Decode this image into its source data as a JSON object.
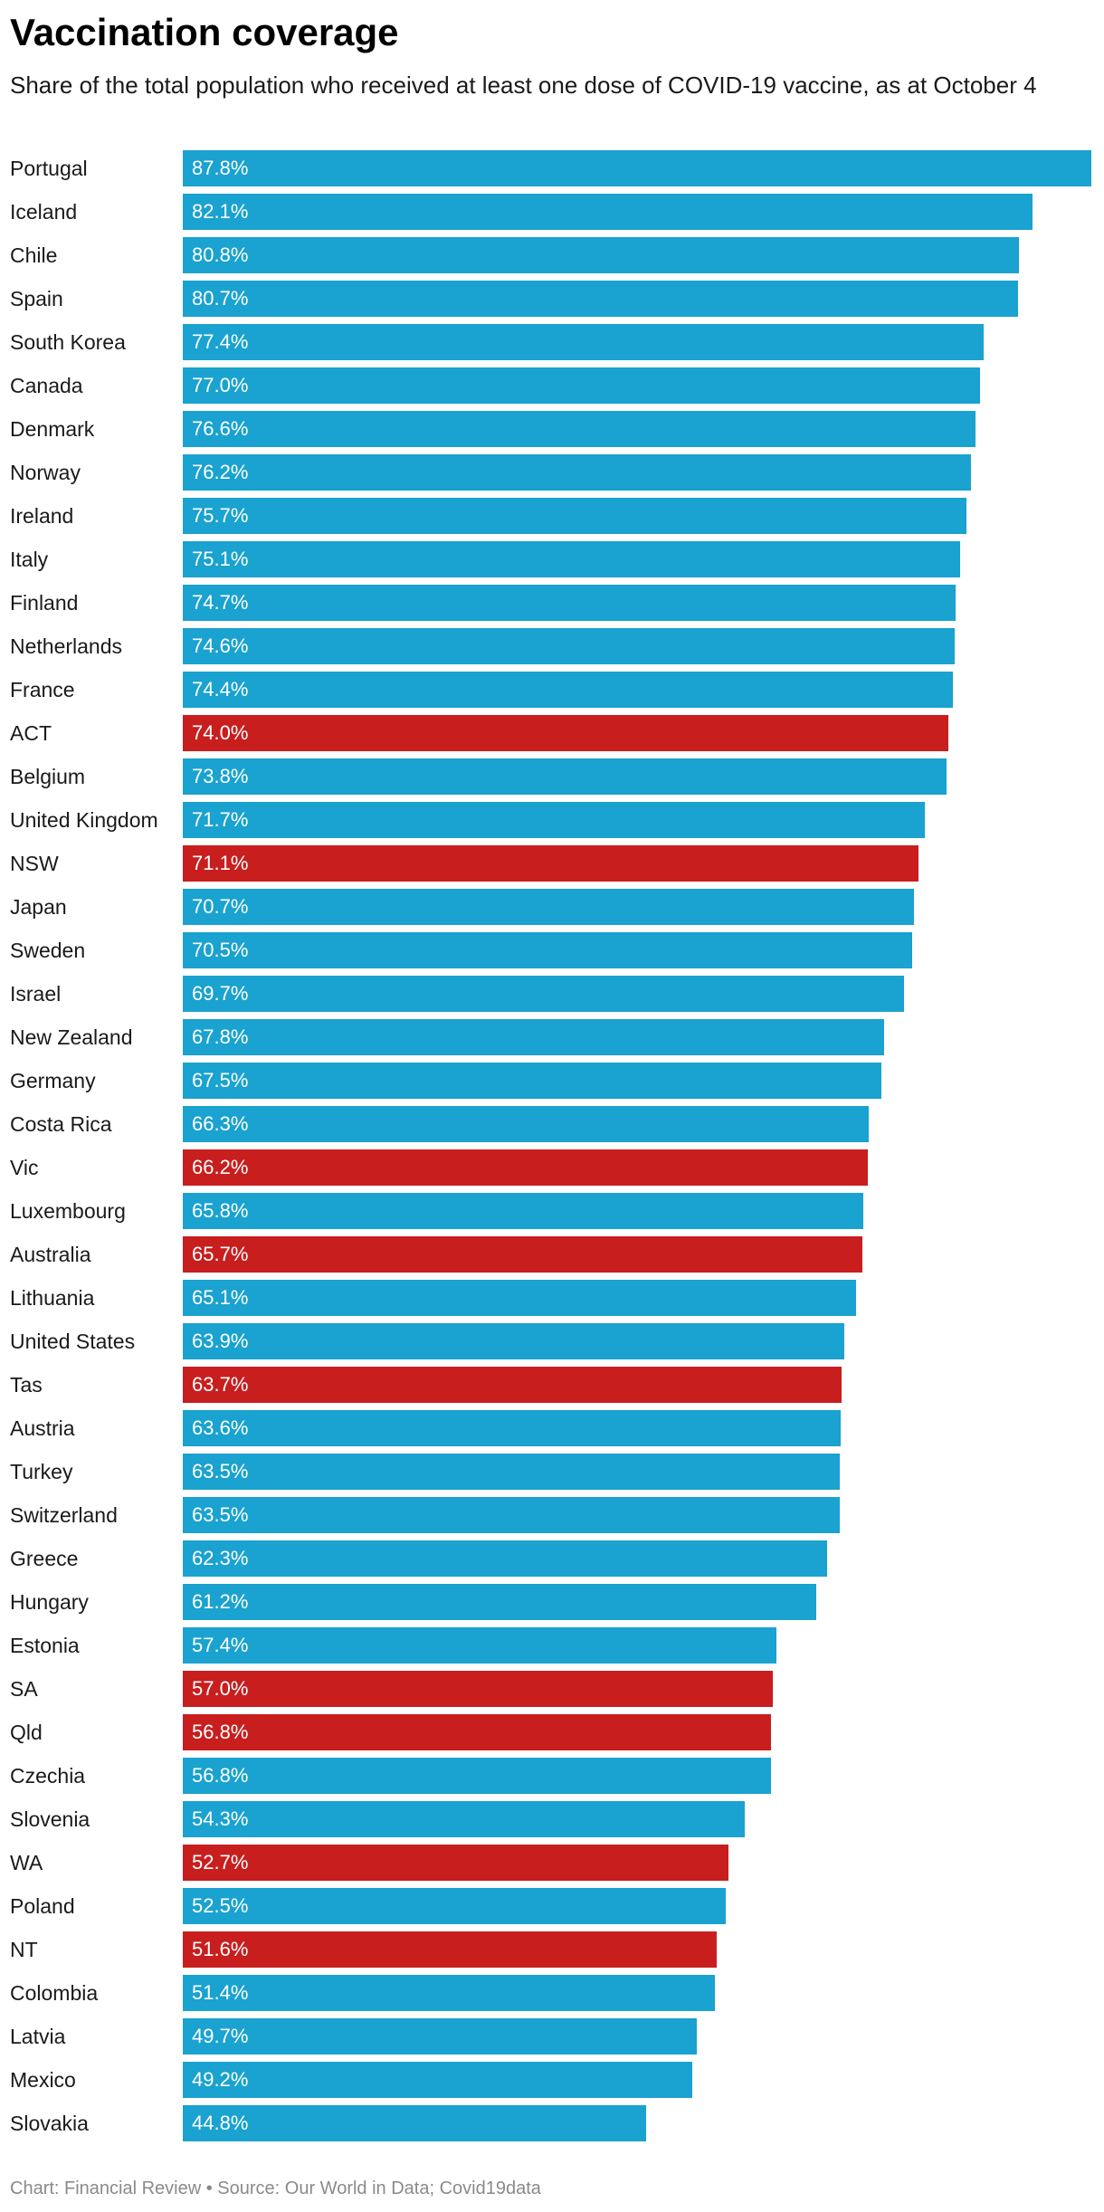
{
  "chart_data": {
    "type": "bar",
    "orientation": "horizontal",
    "title": "Vaccination coverage",
    "subtitle": "Share of the total population who received at least one dose of COVID-19 vaccine, as at October 4",
    "footer": "Chart: Financial Review • Source: Our World in Data; Covid19data",
    "colors": {
      "default": "#1aa2d0",
      "highlight": "#c81e1e"
    },
    "value_suffix": "%",
    "xlim": [
      0,
      87.8
    ],
    "categories": [
      "Portugal",
      "Iceland",
      "Chile",
      "Spain",
      "South Korea",
      "Canada",
      "Denmark",
      "Norway",
      "Ireland",
      "Italy",
      "Finland",
      "Netherlands",
      "France",
      "ACT",
      "Belgium",
      "United Kingdom",
      "NSW",
      "Japan",
      "Sweden",
      "Israel",
      "New Zealand",
      "Germany",
      "Costa Rica",
      "Vic",
      "Luxembourg",
      "Australia",
      "Lithuania",
      "United States",
      "Tas",
      "Austria",
      "Turkey",
      "Switzerland",
      "Greece",
      "Hungary",
      "Estonia",
      "SA",
      "Qld",
      "Czechia",
      "Slovenia",
      "WA",
      "Poland",
      "NT",
      "Colombia",
      "Latvia",
      "Mexico",
      "Slovakia"
    ],
    "values": [
      87.8,
      82.1,
      80.8,
      80.7,
      77.4,
      77.0,
      76.6,
      76.2,
      75.7,
      75.1,
      74.7,
      74.6,
      74.4,
      74.0,
      73.8,
      71.7,
      71.1,
      70.7,
      70.5,
      69.7,
      67.8,
      67.5,
      66.3,
      66.2,
      65.8,
      65.7,
      65.1,
      63.9,
      63.7,
      63.6,
      63.5,
      63.5,
      62.3,
      61.2,
      57.4,
      57.0,
      56.8,
      56.8,
      54.3,
      52.7,
      52.5,
      51.6,
      51.4,
      49.7,
      49.2,
      44.8
    ],
    "highlighted": [
      "ACT",
      "NSW",
      "Vic",
      "Australia",
      "Tas",
      "SA",
      "Qld",
      "WA",
      "NT"
    ]
  }
}
